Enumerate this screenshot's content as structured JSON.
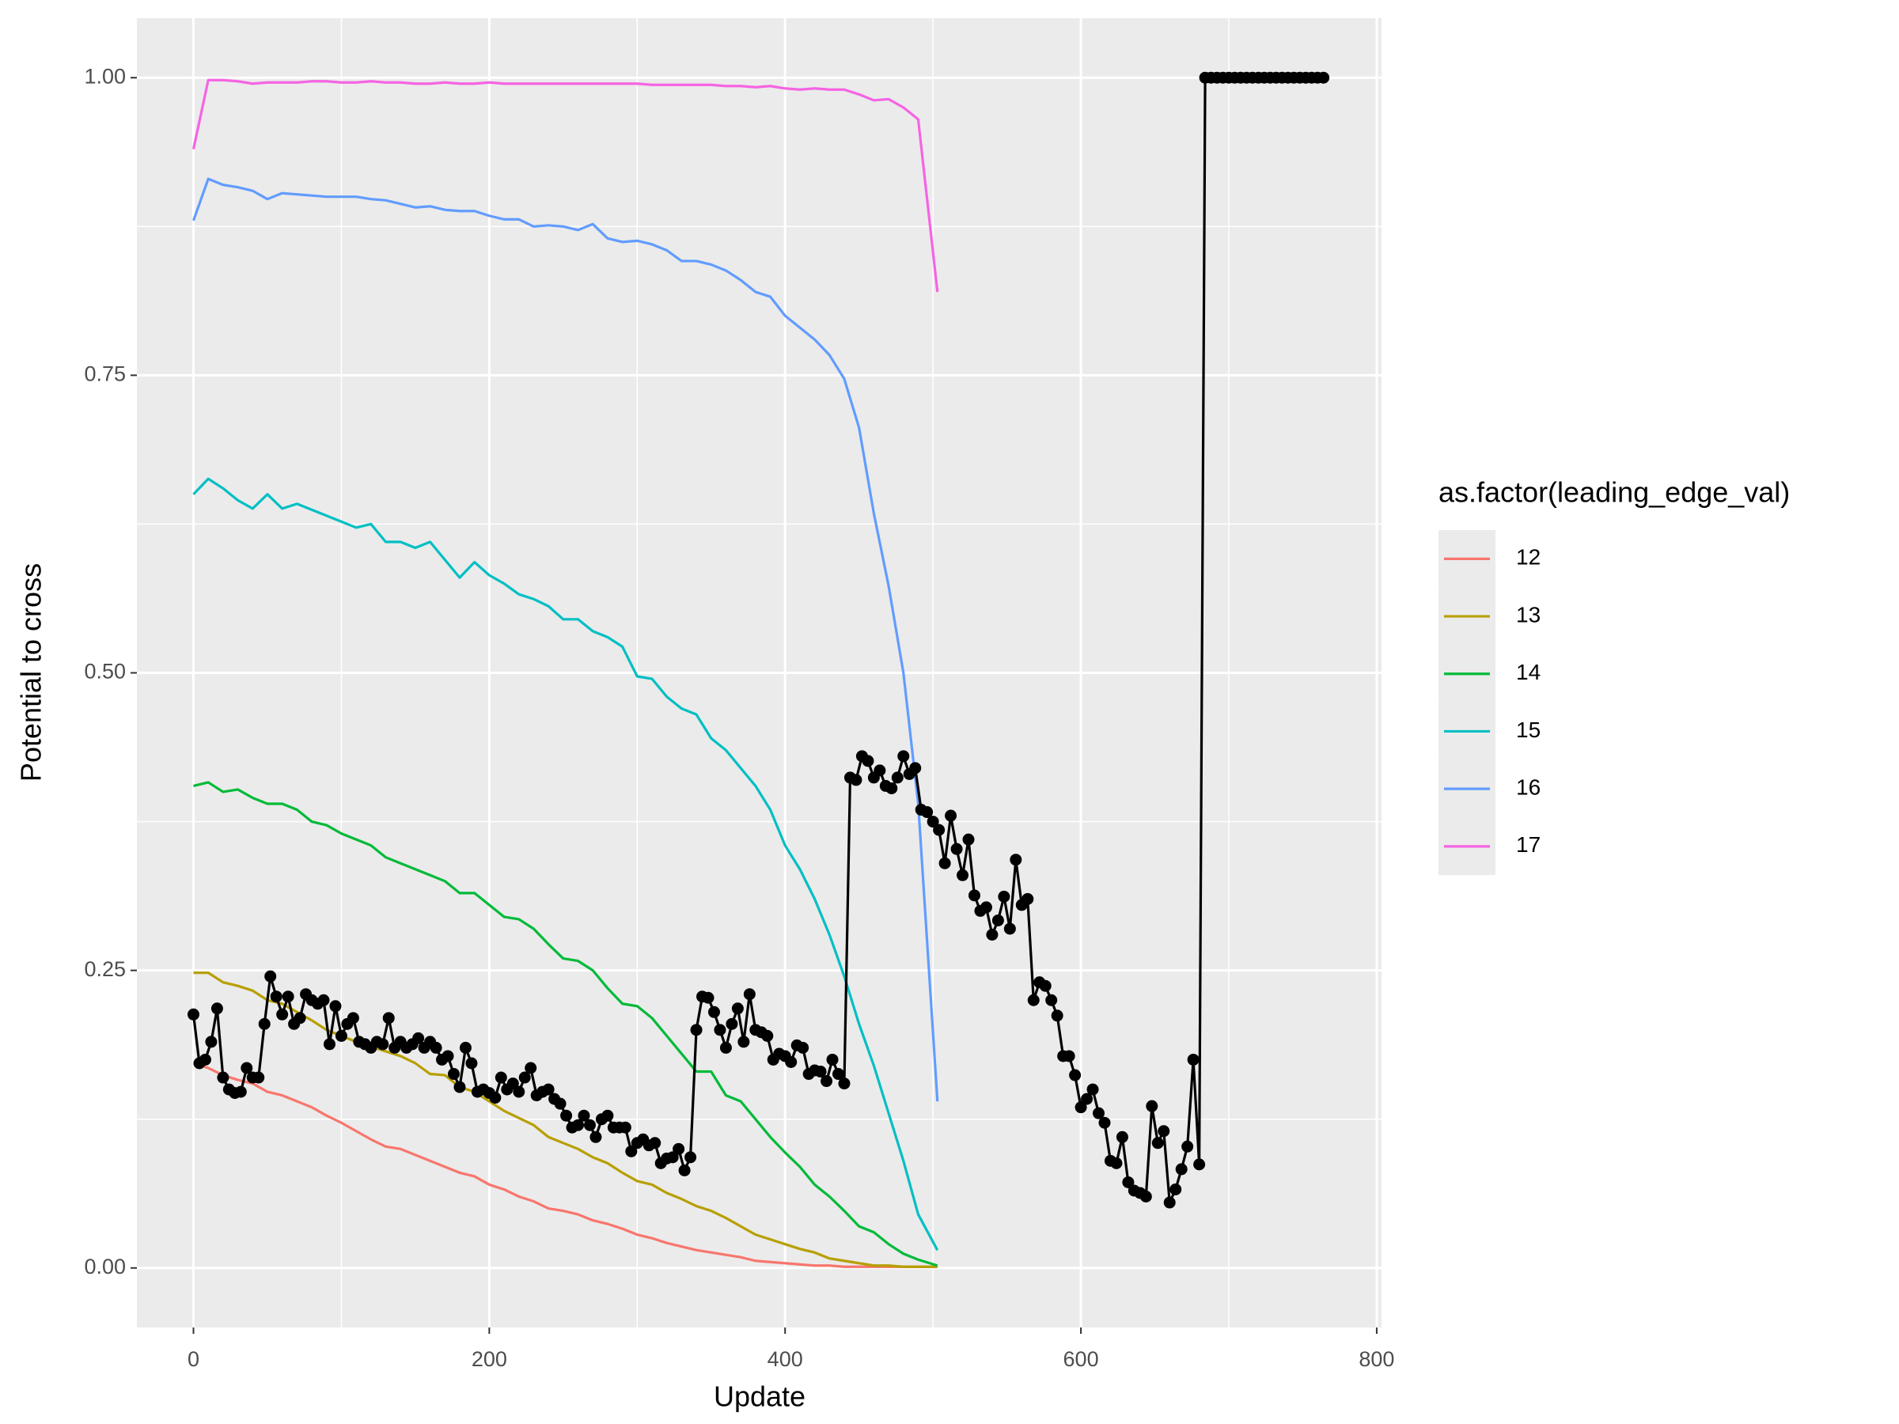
{
  "chart_data": {
    "type": "line",
    "xlabel": "Update",
    "ylabel": "Potential to cross",
    "legend_title": "as.factor(leading_edge_val)",
    "legend": "right",
    "grid": true,
    "xlim": [
      -38.25,
      803.25
    ],
    "ylim": [
      -0.05,
      1.05
    ],
    "xticks": [
      0,
      200,
      400,
      600,
      800
    ],
    "yticks": [
      {
        "value": 0,
        "label": "0.00"
      },
      0.25,
      {
        "value": 0.5,
        "label": "0.50"
      },
      0.75,
      {
        "value": 1,
        "label": "1.00"
      }
    ],
    "xminor": [
      100,
      300,
      500,
      700
    ],
    "yminor": [
      0.125,
      0.375,
      0.625,
      0.875
    ],
    "x": [
      0,
      10,
      20,
      30,
      40,
      50,
      60,
      70,
      80,
      90,
      100,
      110,
      120,
      130,
      140,
      150,
      160,
      170,
      180,
      190,
      200,
      210,
      220,
      230,
      240,
      250,
      260,
      270,
      280,
      290,
      300,
      310,
      320,
      330,
      340,
      350,
      360,
      370,
      380,
      390,
      400,
      410,
      420,
      430,
      440,
      450,
      460,
      470,
      480,
      490,
      503
    ],
    "series": [
      {
        "name": "12",
        "color": "#F8766D",
        "values": [
          0.172,
          0.168,
          0.162,
          0.158,
          0.155,
          0.148,
          0.145,
          0.14,
          0.135,
          0.128,
          0.122,
          0.115,
          0.108,
          0.102,
          0.1,
          0.095,
          0.09,
          0.085,
          0.08,
          0.077,
          0.07,
          0.066,
          0.06,
          0.056,
          0.05,
          0.048,
          0.045,
          0.04,
          0.037,
          0.033,
          0.028,
          0.025,
          0.021,
          0.018,
          0.015,
          0.013,
          0.011,
          0.009,
          0.006,
          0.005,
          0.004,
          0.003,
          0.002,
          0.002,
          0.001,
          0.001,
          0.001,
          0.001,
          0.001,
          0.001,
          0.001
        ]
      },
      {
        "name": "13",
        "color": "#B79F00",
        "values": [
          0.248,
          0.248,
          0.24,
          0.237,
          0.233,
          0.225,
          0.222,
          0.215,
          0.208,
          0.2,
          0.195,
          0.19,
          0.186,
          0.182,
          0.178,
          0.172,
          0.163,
          0.162,
          0.152,
          0.148,
          0.14,
          0.132,
          0.126,
          0.12,
          0.11,
          0.105,
          0.1,
          0.093,
          0.088,
          0.08,
          0.073,
          0.07,
          0.063,
          0.058,
          0.052,
          0.048,
          0.042,
          0.035,
          0.028,
          0.024,
          0.02,
          0.016,
          0.013,
          0.008,
          0.006,
          0.004,
          0.002,
          0.002,
          0.001,
          0.001,
          0.001
        ]
      },
      {
        "name": "14",
        "color": "#00BA38",
        "values": [
          0.405,
          0.408,
          0.4,
          0.402,
          0.395,
          0.39,
          0.39,
          0.385,
          0.375,
          0.372,
          0.365,
          0.36,
          0.355,
          0.345,
          0.34,
          0.335,
          0.33,
          0.325,
          0.315,
          0.315,
          0.305,
          0.295,
          0.293,
          0.285,
          0.272,
          0.26,
          0.258,
          0.25,
          0.235,
          0.222,
          0.22,
          0.21,
          0.195,
          0.18,
          0.165,
          0.165,
          0.145,
          0.14,
          0.125,
          0.11,
          0.097,
          0.085,
          0.07,
          0.06,
          0.048,
          0.035,
          0.03,
          0.02,
          0.012,
          0.007,
          0.002
        ]
      },
      {
        "name": "15",
        "color": "#00BFC4",
        "values": [
          0.65,
          0.663,
          0.655,
          0.645,
          0.638,
          0.65,
          0.638,
          0.642,
          0.637,
          0.632,
          0.627,
          0.622,
          0.625,
          0.61,
          0.61,
          0.605,
          0.61,
          0.595,
          0.58,
          0.593,
          0.582,
          0.575,
          0.566,
          0.562,
          0.556,
          0.545,
          0.545,
          0.535,
          0.53,
          0.522,
          0.497,
          0.495,
          0.48,
          0.47,
          0.465,
          0.445,
          0.435,
          0.42,
          0.405,
          0.385,
          0.355,
          0.335,
          0.31,
          0.28,
          0.245,
          0.205,
          0.17,
          0.13,
          0.09,
          0.045,
          0.015
        ]
      },
      {
        "name": "16",
        "color": "#619CFF",
        "values": [
          0.88,
          0.915,
          0.91,
          0.908,
          0.905,
          0.898,
          0.903,
          0.902,
          0.901,
          0.9,
          0.9,
          0.9,
          0.898,
          0.897,
          0.894,
          0.891,
          0.892,
          0.889,
          0.888,
          0.888,
          0.884,
          0.881,
          0.881,
          0.875,
          0.876,
          0.875,
          0.872,
          0.877,
          0.865,
          0.862,
          0.863,
          0.86,
          0.855,
          0.846,
          0.846,
          0.843,
          0.838,
          0.83,
          0.82,
          0.816,
          0.8,
          0.79,
          0.78,
          0.767,
          0.747,
          0.706,
          0.634,
          0.573,
          0.5,
          0.39,
          0.14
        ]
      },
      {
        "name": "17",
        "color": "#F564E3",
        "values": [
          0.94,
          0.998,
          0.998,
          0.997,
          0.995,
          0.996,
          0.996,
          0.996,
          0.997,
          0.997,
          0.996,
          0.996,
          0.997,
          0.996,
          0.996,
          0.995,
          0.995,
          0.996,
          0.995,
          0.995,
          0.996,
          0.995,
          0.995,
          0.995,
          0.995,
          0.995,
          0.995,
          0.995,
          0.995,
          0.995,
          0.995,
          0.994,
          0.994,
          0.994,
          0.994,
          0.994,
          0.993,
          0.993,
          0.992,
          0.993,
          0.991,
          0.99,
          0.991,
          0.99,
          0.99,
          0.986,
          0.981,
          0.982,
          0.975,
          0.965,
          0.82
        ]
      }
    ],
    "black_series": {
      "color": "#000000",
      "x": [
        0,
        4,
        8,
        12,
        16,
        20,
        24,
        28,
        32,
        36,
        40,
        44,
        48,
        52,
        56,
        60,
        64,
        68,
        72,
        76,
        80,
        84,
        88,
        92,
        96,
        100,
        104,
        108,
        112,
        116,
        120,
        124,
        128,
        132,
        136,
        140,
        144,
        148,
        152,
        156,
        160,
        164,
        168,
        172,
        176,
        180,
        184,
        188,
        192,
        196,
        200,
        204,
        208,
        212,
        216,
        220,
        224,
        228,
        232,
        236,
        240,
        244,
        248,
        252,
        256,
        260,
        264,
        268,
        272,
        276,
        280,
        284,
        288,
        292,
        296,
        300,
        304,
        308,
        312,
        316,
        320,
        324,
        328,
        332,
        336,
        340,
        344,
        348,
        352,
        356,
        360,
        364,
        368,
        372,
        376,
        380,
        384,
        388,
        392,
        396,
        400,
        404,
        408,
        412,
        416,
        420,
        424,
        428,
        432,
        436,
        440,
        444,
        448,
        452,
        456,
        460,
        464,
        468,
        472,
        476,
        480,
        484,
        488,
        492,
        496,
        500,
        504,
        508,
        512,
        516,
        520,
        524,
        528,
        532,
        536,
        540,
        544,
        548,
        552,
        556,
        560,
        564,
        568,
        572,
        576,
        580,
        584,
        588,
        592,
        596,
        600,
        604,
        608,
        612,
        616,
        620,
        624,
        628,
        632,
        636,
        640,
        644,
        648,
        652,
        656,
        660,
        664,
        668,
        672,
        676,
        680,
        684,
        688,
        692,
        696,
        700,
        704,
        708,
        712,
        716,
        720,
        724,
        728,
        732,
        736,
        740,
        744,
        748,
        752,
        756,
        760,
        764
      ],
      "values": [
        0.213,
        0.172,
        0.175,
        0.19,
        0.218,
        0.16,
        0.15,
        0.147,
        0.148,
        0.168,
        0.16,
        0.16,
        0.205,
        0.245,
        0.228,
        0.213,
        0.228,
        0.205,
        0.21,
        0.23,
        0.225,
        0.222,
        0.225,
        0.188,
        0.22,
        0.195,
        0.205,
        0.21,
        0.19,
        0.188,
        0.185,
        0.19,
        0.188,
        0.21,
        0.185,
        0.19,
        0.185,
        0.188,
        0.193,
        0.185,
        0.19,
        0.185,
        0.175,
        0.178,
        0.163,
        0.152,
        0.185,
        0.172,
        0.148,
        0.15,
        0.147,
        0.143,
        0.16,
        0.15,
        0.155,
        0.148,
        0.16,
        0.168,
        0.145,
        0.148,
        0.15,
        0.142,
        0.138,
        0.128,
        0.118,
        0.12,
        0.128,
        0.12,
        0.11,
        0.125,
        0.128,
        0.118,
        0.118,
        0.118,
        0.098,
        0.105,
        0.108,
        0.103,
        0.105,
        0.088,
        0.092,
        0.093,
        0.1,
        0.082,
        0.093,
        0.2,
        0.228,
        0.227,
        0.215,
        0.2,
        0.185,
        0.205,
        0.218,
        0.19,
        0.23,
        0.2,
        0.198,
        0.195,
        0.175,
        0.18,
        0.178,
        0.173,
        0.187,
        0.185,
        0.163,
        0.166,
        0.165,
        0.157,
        0.175,
        0.163,
        0.155,
        0.412,
        0.41,
        0.43,
        0.426,
        0.412,
        0.418,
        0.405,
        0.403,
        0.412,
        0.43,
        0.415,
        0.42,
        0.385,
        0.383,
        0.375,
        0.368,
        0.34,
        0.38,
        0.352,
        0.33,
        0.36,
        0.313,
        0.3,
        0.303,
        0.28,
        0.292,
        0.312,
        0.285,
        0.343,
        0.305,
        0.31,
        0.225,
        0.24,
        0.237,
        0.225,
        0.212,
        0.178,
        0.178,
        0.162,
        0.135,
        0.142,
        0.15,
        0.13,
        0.122,
        0.09,
        0.088,
        0.11,
        0.072,
        0.065,
        0.063,
        0.06,
        0.136,
        0.105,
        0.115,
        0.055,
        0.066,
        0.083,
        0.102,
        0.175,
        0.087,
        1,
        1,
        1,
        1,
        1,
        1,
        1,
        1,
        1,
        1,
        1,
        1,
        1,
        1,
        1,
        1,
        1,
        1,
        1,
        1,
        1
      ]
    }
  }
}
